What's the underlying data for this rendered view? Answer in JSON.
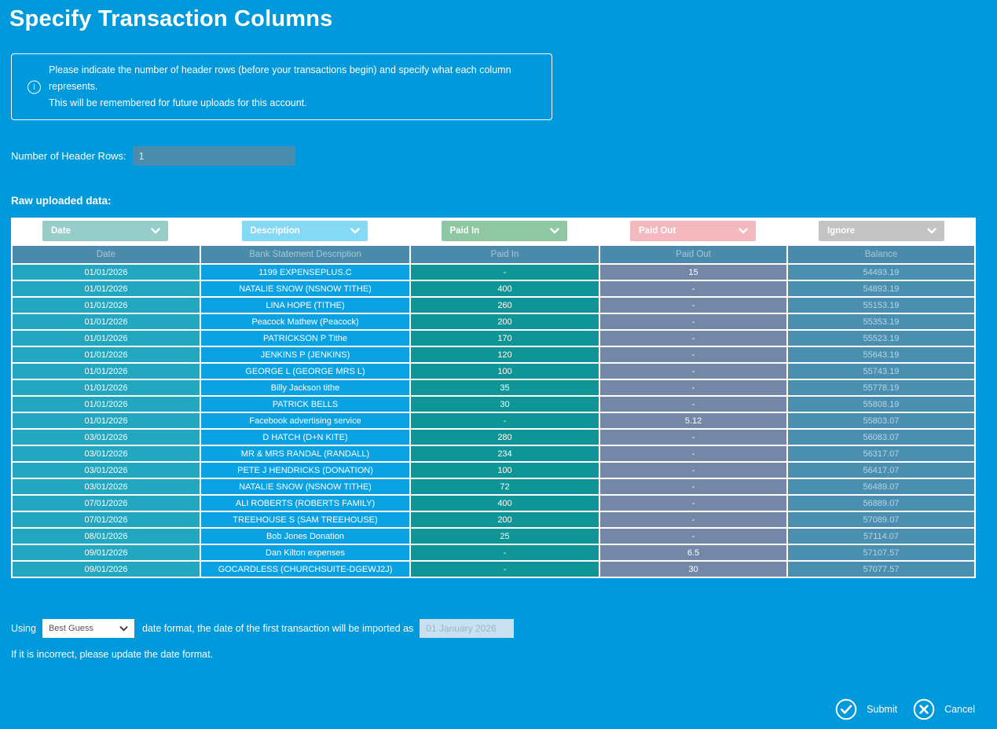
{
  "page_title": "Specify Transaction Columns",
  "info": {
    "line1": "Please indicate the number of header rows (before your transactions begin) and specify what each column represents.",
    "line2": "This will be remembered for future uploads for this account."
  },
  "header_rows": {
    "label": "Number of Header Rows:",
    "value": "1"
  },
  "raw_data_label": "Raw uploaded data:",
  "column_selectors": [
    {
      "value": "Date",
      "color": "#96cdc9"
    },
    {
      "value": "Description",
      "color": "#85d9f5"
    },
    {
      "value": "Paid In",
      "color": "#8fc7a4"
    },
    {
      "value": "Paid Out",
      "color": "#f4b9be"
    },
    {
      "value": "Ignore",
      "color": "#c3c3c3"
    }
  ],
  "table": {
    "headers": [
      "Date",
      "Bank Statement Description",
      "Paid In",
      "Paid Out",
      "Balance"
    ],
    "rows": [
      [
        "01/01/2026",
        "1199 EXPENSEPLUS.C",
        "-",
        "15",
        "54493.19"
      ],
      [
        "01/01/2026",
        "NATALIE SNOW (NSNOW TITHE)",
        "400",
        "-",
        "54893.19"
      ],
      [
        "01/01/2026",
        "LINA HOPE (TITHE)",
        "260",
        "-",
        "55153.19"
      ],
      [
        "01/01/2026",
        "Peacock Mathew (Peacock)",
        "200",
        "-",
        "55353.19"
      ],
      [
        "01/01/2026",
        "PATRICKSON P Tithe",
        "170",
        "-",
        "55523.19"
      ],
      [
        "01/01/2026",
        "JENKINS P (JENKINS)",
        "120",
        "-",
        "55643.19"
      ],
      [
        "01/01/2026",
        "GEORGE L (GEORGE MRS L)",
        "100",
        "-",
        "55743.19"
      ],
      [
        "01/01/2026",
        "Billy Jackson tithe",
        "35",
        "-",
        "55778.19"
      ],
      [
        "01/01/2026",
        "PATRICK BELLS",
        "30",
        "-",
        "55808.19"
      ],
      [
        "01/01/2026",
        "Facebook advertising service",
        "-",
        "5.12",
        "55803.07"
      ],
      [
        "03/01/2026",
        "D HATCH (D+N KITE)",
        "280",
        "-",
        "56083.07"
      ],
      [
        "03/01/2026",
        "MR & MRS RANDAL (RANDALL)",
        "234",
        "-",
        "56317.07"
      ],
      [
        "03/01/2026",
        "PETE J HENDRICKS (DONATION)",
        "100",
        "-",
        "56417.07"
      ],
      [
        "03/01/2026",
        "NATALIE SNOW (NSNOW TITHE)",
        "72",
        "-",
        "56489.07"
      ],
      [
        "07/01/2026",
        "ALI ROBERTS (ROBERTS FAMILY)",
        "400",
        "-",
        "56889.07"
      ],
      [
        "07/01/2026",
        "TREEHOUSE S (SAM TREEHOUSE)",
        "200",
        "-",
        "57089.07"
      ],
      [
        "08/01/2026",
        "Bob Jones Donation",
        "25",
        "-",
        "57114.07"
      ],
      [
        "09/01/2026",
        "Dan Kilton expenses",
        "-",
        "6.5",
        "57107.57"
      ],
      [
        "09/01/2026",
        "GOCARDLESS (CHURCHSUITE-DGEWJ2J)",
        "-",
        "30",
        "57077.57"
      ]
    ]
  },
  "date_format": {
    "prefix": "Using",
    "select_value": "Best Guess",
    "middle": "date format, the date of the first transaction will be imported as",
    "date_value": "01 January 2026",
    "note": "If it is incorrect, please update the date format."
  },
  "actions": {
    "submit_label": "Submit",
    "cancel_label": "Cancel"
  },
  "colors": {
    "background": "#0099db",
    "table_header_bg": "#4a8bac",
    "col_date_bg": "#23a6c0",
    "col_description_bg": "#0aa2e2",
    "col_paid_in_bg": "#0f9596",
    "col_paid_out_bg": "#7587a6",
    "col_balance_bg": "#4a8eb0"
  }
}
